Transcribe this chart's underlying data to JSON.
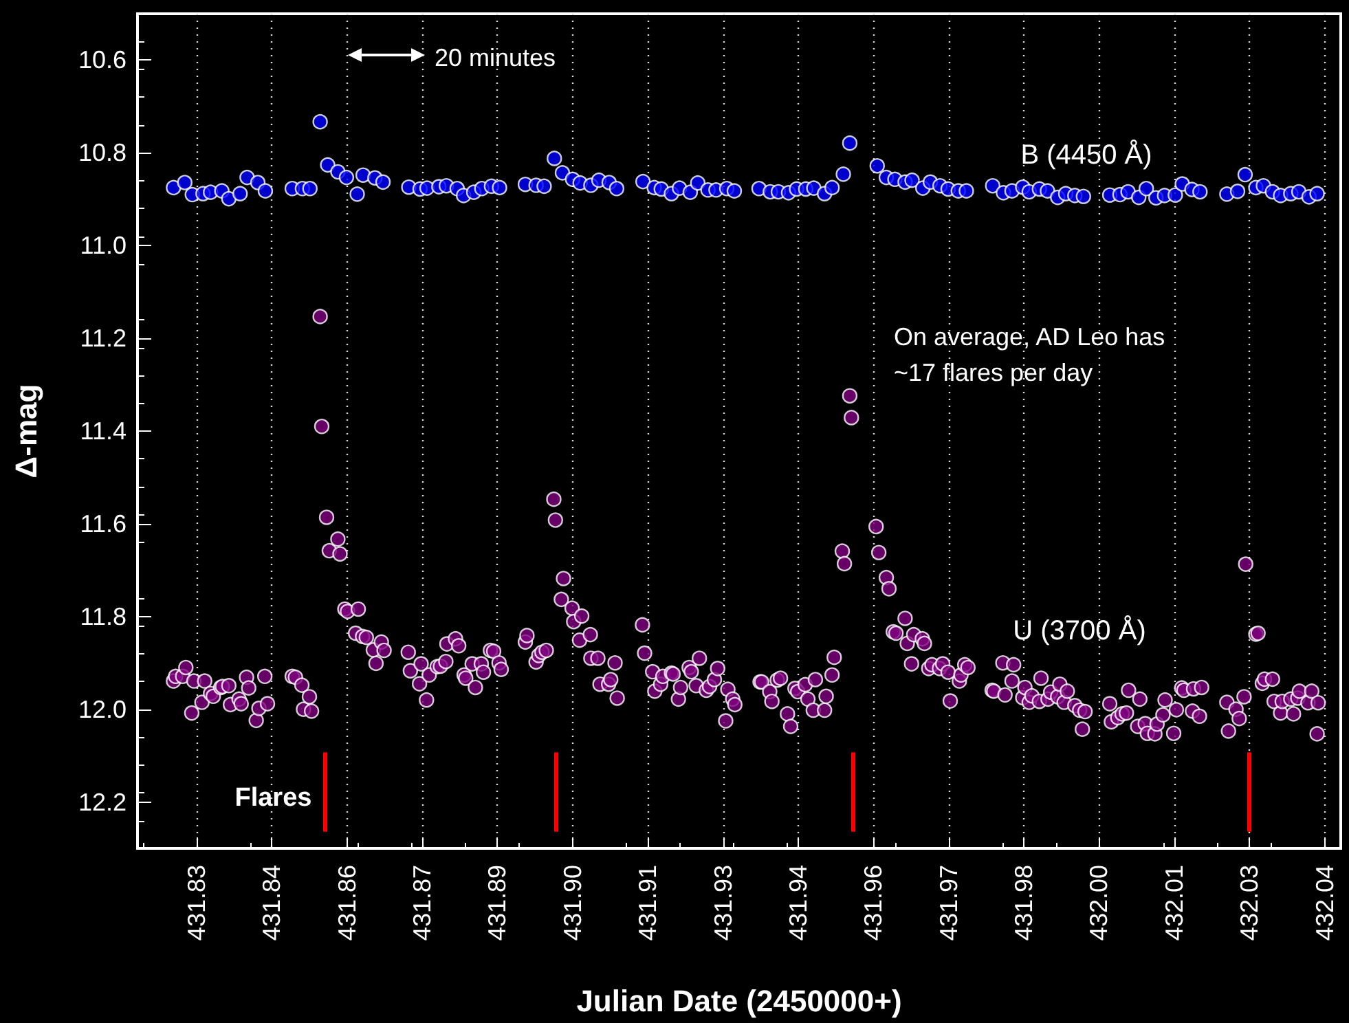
{
  "chart_data": {
    "type": "scatter",
    "xlabel": "Julian Date (2450000+)",
    "ylabel": "Δ-mag",
    "annotations": [
      "20 minutes",
      "On average, AD Leo has\n~17 flares per day"
    ],
    "xlim": [
      431.819,
      432.043
    ],
    "xticks": [
      {
        "value": 431.83,
        "label": "431.83"
      },
      {
        "value": 431.844,
        "label": "431.84"
      },
      {
        "value": 431.858,
        "label": "431.86"
      },
      {
        "value": 431.872,
        "label": "431.87"
      },
      {
        "value": 431.886,
        "label": "431.89"
      },
      {
        "value": 431.9,
        "label": "431.90"
      },
      {
        "value": 431.914,
        "label": "431.91"
      },
      {
        "value": 431.928,
        "label": "431.93"
      },
      {
        "value": 431.942,
        "label": "431.94"
      },
      {
        "value": 431.956,
        "label": "431.96"
      },
      {
        "value": 431.97,
        "label": "431.97"
      },
      {
        "value": 431.984,
        "label": "431.98"
      },
      {
        "value": 431.998,
        "label": "432.00"
      },
      {
        "value": 432.012,
        "label": "432.01"
      },
      {
        "value": 432.026,
        "label": "432.03"
      },
      {
        "value": 432.04,
        "label": "432.04"
      }
    ],
    "ylim": [
      12.3,
      10.5
    ],
    "yticks": [
      10.6,
      10.8,
      {
        "value": 11,
        "label": "11.0"
      },
      11.2,
      11.4,
      11.6,
      11.8,
      {
        "value": 12,
        "label": "12.0"
      },
      12.2
    ],
    "grid": "x",
    "marker": "circle",
    "ref_lines": [
      {
        "axis": "x",
        "value": 431.854,
        "label": "Flares",
        "color": "#ff0000"
      },
      {
        "axis": "x",
        "value": 431.8968,
        "label": null,
        "color": "#ff0000"
      },
      {
        "axis": "x",
        "value": 431.9522,
        "label": null,
        "color": "#ff0000"
      },
      {
        "axis": "x",
        "value": 432.0259,
        "label": null,
        "color": "#ff0000"
      }
    ],
    "series": [
      {
        "name": "B (4450 Å)",
        "color": "#0000ff",
        "x": [
          431.8257,
          431.8278,
          431.8292,
          431.8312,
          431.8326,
          431.8347,
          431.836,
          431.8381,
          431.8394,
          431.8414,
          431.8428,
          431.8478,
          431.8497,
          431.8511,
          431.853,
          431.8544,
          431.8563,
          431.8579,
          431.8599,
          431.861,
          431.8632,
          431.8647,
          431.8695,
          431.8716,
          431.8729,
          431.8751,
          431.8765,
          431.8785,
          431.8797,
          431.8816,
          431.8831,
          431.8849,
          431.8864,
          431.8912,
          431.8932,
          431.8947,
          431.8966,
          431.8981,
          431.9,
          431.9014,
          431.9034,
          431.9049,
          431.9068,
          431.9082,
          431.9131,
          431.9152,
          431.9165,
          431.9184,
          431.9199,
          431.9219,
          431.9233,
          431.9252,
          431.9267,
          431.9287,
          431.9301,
          431.9347,
          431.9368,
          431.9383,
          431.9402,
          431.9417,
          431.9434,
          431.9449,
          431.9469,
          431.9483,
          431.9504,
          431.9516,
          431.9567,
          431.9584,
          431.96,
          431.9619,
          431.9632,
          431.9652,
          431.9666,
          431.9684,
          431.9699,
          431.9718,
          431.9733,
          431.9782,
          431.9802,
          431.9818,
          431.9838,
          431.985,
          431.9869,
          431.9884,
          431.9903,
          431.9918,
          431.9935,
          431.9951,
          432.0,
          432.0019,
          432.0034,
          432.0054,
          432.0068,
          432.0086,
          432.0102,
          432.0122,
          432.0135,
          432.0153,
          432.0168,
          432.0218,
          432.0238,
          432.0252,
          432.0272,
          432.0286,
          432.0303,
          432.0318,
          432.0337,
          432.0352,
          432.0371,
          432.0386
        ],
        "values": [
          10.875,
          10.864,
          10.89,
          10.888,
          10.885,
          10.882,
          10.899,
          10.888,
          10.853,
          10.864,
          10.882,
          10.877,
          10.877,
          10.877,
          10.733,
          10.826,
          10.841,
          10.853,
          10.889,
          10.848,
          10.854,
          10.863,
          10.874,
          10.878,
          10.876,
          10.873,
          10.871,
          10.877,
          10.892,
          10.885,
          10.877,
          10.872,
          10.875,
          10.868,
          10.87,
          10.872,
          10.812,
          10.843,
          10.857,
          10.865,
          10.87,
          10.859,
          10.864,
          10.877,
          10.862,
          10.875,
          10.878,
          10.888,
          10.876,
          10.885,
          10.865,
          10.88,
          10.88,
          10.877,
          10.882,
          10.877,
          10.884,
          10.884,
          10.886,
          10.878,
          10.878,
          10.876,
          10.888,
          10.875,
          10.846,
          10.779,
          10.828,
          10.853,
          10.857,
          10.863,
          10.859,
          10.876,
          10.863,
          10.871,
          10.878,
          10.882,
          10.882,
          10.871,
          10.886,
          10.882,
          10.874,
          10.884,
          10.878,
          10.882,
          10.896,
          10.888,
          10.892,
          10.894,
          10.891,
          10.89,
          10.884,
          10.896,
          10.877,
          10.897,
          10.892,
          10.891,
          10.867,
          10.879,
          10.884,
          10.889,
          10.883,
          10.847,
          10.875,
          10.871,
          10.884,
          10.892,
          10.888,
          10.884,
          10.895,
          10.888
        ]
      },
      {
        "name": "U (3700 Å)",
        "color": "#800080",
        "x": [
          431.8257,
          431.8261,
          431.8274,
          431.828,
          431.8295,
          431.8291,
          431.831,
          431.8315,
          431.8326,
          431.8331,
          431.8345,
          431.8348,
          431.836,
          431.8363,
          431.8379,
          431.8383,
          431.8393,
          431.8397,
          431.8411,
          431.8416,
          431.8427,
          431.8432,
          431.8478,
          431.8484,
          431.8496,
          431.8499,
          431.851,
          431.8514,
          431.853,
          431.8533,
          431.8542,
          431.8547,
          431.8563,
          431.8567,
          431.8576,
          431.8581,
          431.8601,
          431.8596,
          431.8609,
          431.8616,
          431.8629,
          431.8634,
          431.8644,
          431.8649,
          431.8694,
          431.8698,
          431.8715,
          431.8718,
          431.8728,
          431.8733,
          431.8748,
          431.8754,
          431.8764,
          431.8766,
          431.8782,
          431.8788,
          431.8798,
          431.8801,
          431.8813,
          431.8819,
          431.883,
          431.8834,
          431.8847,
          431.8853,
          431.8863,
          431.8867,
          431.8912,
          431.8915,
          431.8932,
          431.8937,
          431.8943,
          431.8951,
          431.8965,
          431.8968,
          431.8983,
          431.8979,
          431.8999,
          431.9002,
          431.9013,
          431.9017,
          431.9033,
          431.9034,
          431.9047,
          431.9051,
          431.9067,
          431.9071,
          431.9079,
          431.9083,
          431.913,
          431.9134,
          431.9149,
          431.9153,
          431.9164,
          431.9168,
          431.9184,
          431.9187,
          431.9197,
          431.9201,
          431.9217,
          431.9221,
          431.923,
          431.9236,
          431.9249,
          431.9255,
          431.9264,
          431.927,
          431.9285,
          431.9289,
          431.9298,
          431.9302,
          431.9349,
          431.9352,
          431.9367,
          431.9371,
          431.9381,
          431.9387,
          431.94,
          431.9406,
          431.9414,
          431.9419,
          431.9433,
          431.9438,
          431.9448,
          431.9452,
          431.9469,
          431.9472,
          431.9483,
          431.9487,
          431.9502,
          431.9506,
          431.9516,
          431.9519,
          431.9565,
          431.957,
          431.9584,
          431.9589,
          431.9597,
          431.9602,
          431.9619,
          431.9623,
          431.9631,
          431.9635,
          431.9651,
          431.9655,
          431.9663,
          431.9669,
          431.9683,
          431.9689,
          431.9699,
          431.9703,
          431.972,
          431.9723,
          431.973,
          431.9736,
          431.9781,
          431.9784,
          431.9801,
          431.9805,
          431.9818,
          431.9821,
          431.9838,
          431.9842,
          431.985,
          431.9855,
          431.9869,
          431.9872,
          431.9885,
          431.989,
          431.9903,
          431.9907,
          431.9915,
          431.9921,
          431.9935,
          431.9944,
          431.9949,
          431.9954,
          432.0,
          432.0003,
          432.0015,
          432.0023,
          432.0031,
          432.0035,
          432.0052,
          432.0056,
          432.0066,
          432.007,
          432.0084,
          432.0088,
          432.0099,
          432.0103,
          432.0119,
          432.0124,
          432.0134,
          432.0138,
          432.0154,
          432.0156,
          432.0167,
          432.0171,
          432.0218,
          432.0221,
          432.0235,
          432.0241,
          432.025,
          432.0253,
          432.0272,
          432.0276,
          432.0284,
          432.0288,
          432.0303,
          432.0306,
          432.0318,
          432.0321,
          432.0337,
          432.0342,
          432.035,
          432.0353,
          432.0369,
          432.0376,
          432.0386,
          432.0388
        ],
        "values": [
          11.939,
          11.929,
          11.929,
          11.91,
          11.939,
          12.008,
          11.985,
          11.939,
          11.966,
          11.972,
          11.953,
          11.951,
          11.949,
          11.99,
          11.978,
          11.988,
          11.931,
          11.954,
          12.024,
          11.998,
          11.929,
          11.988,
          11.929,
          11.931,
          11.948,
          12.0,
          11.973,
          12.004,
          11.153,
          11.39,
          11.586,
          11.658,
          11.633,
          11.665,
          11.784,
          11.789,
          11.784,
          11.836,
          11.843,
          11.845,
          11.872,
          11.901,
          11.855,
          11.873,
          11.877,
          11.917,
          11.945,
          11.902,
          11.98,
          11.926,
          11.908,
          11.907,
          11.897,
          11.859,
          11.848,
          11.863,
          11.926,
          11.933,
          11.902,
          11.953,
          11.902,
          11.92,
          11.873,
          11.875,
          11.9,
          11.914,
          11.855,
          11.841,
          11.898,
          11.884,
          11.877,
          11.873,
          11.547,
          11.592,
          11.718,
          11.763,
          11.782,
          11.811,
          11.851,
          11.799,
          11.839,
          11.89,
          11.89,
          11.946,
          11.946,
          11.936,
          11.9,
          11.976,
          11.818,
          11.879,
          11.919,
          11.961,
          11.946,
          11.929,
          11.922,
          11.924,
          11.978,
          11.953,
          11.91,
          11.919,
          11.949,
          11.89,
          11.959,
          11.951,
          11.936,
          11.912,
          12.025,
          11.957,
          11.978,
          11.99,
          11.941,
          11.941,
          11.962,
          11.983,
          11.937,
          11.933,
          12.01,
          12.037,
          11.955,
          11.962,
          11.947,
          11.978,
          12.002,
          11.936,
          12.002,
          11.972,
          11.926,
          11.888,
          11.659,
          11.686,
          11.324,
          11.371,
          11.606,
          11.662,
          11.716,
          11.74,
          11.833,
          11.836,
          11.804,
          11.858,
          11.902,
          11.839,
          11.848,
          11.858,
          11.912,
          11.904,
          11.912,
          11.902,
          11.92,
          11.982,
          11.939,
          11.926,
          11.904,
          11.91,
          11.959,
          11.961,
          11.9,
          11.969,
          11.939,
          11.904,
          11.975,
          11.953,
          11.985,
          11.971,
          11.983,
          11.933,
          11.978,
          11.963,
          11.973,
          11.946,
          11.985,
          11.961,
          11.992,
          12.002,
          12.043,
          12.005,
          11.988,
          12.027,
          12.018,
          12.01,
          12.008,
          11.959,
          12.037,
          11.978,
          12.031,
          12.052,
          12.053,
          12.032,
          12.012,
          11.98,
          12.052,
          12.001,
          11.954,
          11.959,
          12.004,
          11.956,
          12.015,
          11.953,
          11.985,
          12.047,
          12.0,
          12.02,
          11.973,
          11.687,
          11.838,
          11.836,
          11.944,
          11.935,
          11.935,
          11.983,
          12.008,
          11.983,
          11.978,
          12.01,
          11.976,
          11.961,
          11.986,
          11.961,
          12.053,
          11.986
        ]
      }
    ]
  }
}
